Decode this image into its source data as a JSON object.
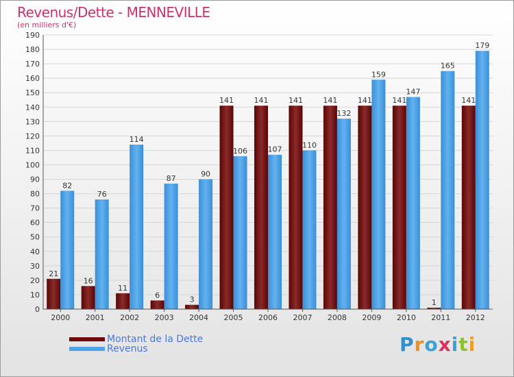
{
  "chart_data": {
    "type": "bar",
    "title": "Revenus/Dette - MENNEVILLE",
    "subtitle": "(en milliers d'€)",
    "categories": [
      "2000",
      "2001",
      "2002",
      "2003",
      "2004",
      "2005",
      "2006",
      "2007",
      "2008",
      "2009",
      "2010",
      "2011",
      "2012"
    ],
    "series": [
      {
        "name": "Montant de la Dette",
        "color": "#6e0a0a",
        "values": [
          21,
          16,
          11,
          6,
          3,
          141,
          141,
          141,
          141,
          141,
          141,
          1,
          141
        ]
      },
      {
        "name": "Revenus",
        "color": "#4fa3e6",
        "values": [
          82,
          76,
          114,
          87,
          90,
          106,
          107,
          110,
          132,
          159,
          147,
          165,
          179
        ]
      }
    ],
    "ylim": [
      0,
      190
    ],
    "ytick_step": 10,
    "grid": true,
    "legend": "bottom-left"
  },
  "branding": {
    "logo_text": "Proxiti"
  }
}
